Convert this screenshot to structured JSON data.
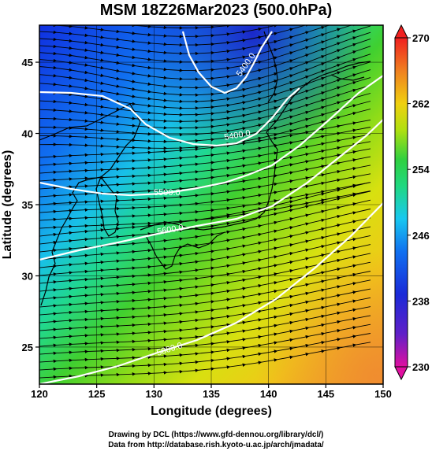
{
  "title": "MSM 18Z26Mar2023 (500.0hPa)",
  "map": {
    "x_axis_label": "Longitude (degrees)",
    "y_axis_label": "Latitude  (degrees)",
    "x_ticks": [
      "120",
      "125",
      "130",
      "135",
      "140",
      "145",
      "150"
    ],
    "y_ticks": [
      "45",
      "40",
      "35",
      "30",
      "25"
    ],
    "lon_range": [
      120,
      150
    ],
    "lat_range": [
      22.4,
      47.6
    ]
  },
  "colorbar": {
    "labels": [
      "270",
      "262",
      "254",
      "246",
      "238",
      "230"
    ],
    "range": [
      230,
      270
    ],
    "colors": [
      "#e8109a",
      "#7020c0",
      "#1a2ad8",
      "#1060f0",
      "#18b0f0",
      "#20e0c0",
      "#20d060",
      "#60d020",
      "#c0e010",
      "#f0d010",
      "#f0a020",
      "#f06020",
      "#f02020"
    ]
  },
  "contours": {
    "labels": [
      "5400.0",
      "5400.0",
      "5500.0",
      "5600.0",
      "5800.0"
    ]
  },
  "credits": {
    "line1": "Drawing by DCL (https://www.gfd-dennou.org/library/dcl/)",
    "line2": "Data from http://database.rish.kyoto-u.ac.jp/arch/jmadata/"
  }
}
